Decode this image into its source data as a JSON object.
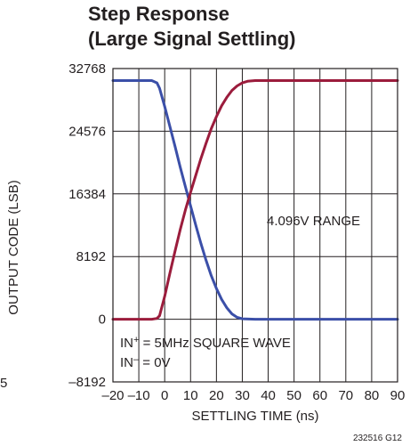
{
  "chart_data": {
    "type": "line",
    "title_line1": "Step Response",
    "title_line2": "(Large Signal Settling)",
    "xlabel": "SETTLING TIME (ns)",
    "ylabel": "OUTPUT CODE (LSB)",
    "xlim": [
      -20,
      90
    ],
    "ylim": [
      -8192,
      32768
    ],
    "x_ticks": [
      "–20",
      "–10",
      "0",
      "10",
      "20",
      "30",
      "40",
      "50",
      "60",
      "70",
      "80",
      "90"
    ],
    "y_ticks": [
      "32768",
      "24576",
      "16384",
      "8192",
      "0",
      "–8192"
    ],
    "grid": true,
    "annotations": {
      "range": "4.096V RANGE",
      "in_plus_prefix": "IN",
      "in_plus_sup": "+",
      "in_plus_rest": " = 5MHz SQUARE WAVE",
      "in_minus_prefix": "IN",
      "in_minus_sup": "–",
      "in_minus_rest": " = 0V"
    },
    "figure_id": "232516 G12",
    "edge_fragment": "5",
    "colors": {
      "falling": "#3b4fa8",
      "rising": "#9b1c3c",
      "grid": "#231f20"
    },
    "series": [
      {
        "x": [
          -20,
          -10,
          -5,
          -3,
          -2,
          0,
          2,
          4,
          6,
          8,
          10,
          12,
          14,
          16,
          18,
          20,
          22,
          24,
          26,
          28,
          30,
          35,
          40,
          50,
          60,
          70,
          80,
          90
        ],
        "values": [
          31200,
          31200,
          31200,
          30900,
          30200,
          27800,
          25200,
          22600,
          19900,
          17300,
          14800,
          12300,
          9900,
          7700,
          5700,
          4000,
          2600,
          1500,
          700,
          250,
          60,
          0,
          0,
          0,
          0,
          0,
          0,
          0
        ]
      },
      {
        "x": [
          -20,
          -10,
          -5,
          -3,
          -2,
          0,
          2,
          4,
          6,
          8,
          10,
          12,
          14,
          16,
          18,
          20,
          22,
          24,
          26,
          28,
          30,
          32,
          35,
          40,
          50,
          60,
          70,
          80,
          90
        ],
        "values": [
          0,
          0,
          0,
          100,
          450,
          3000,
          6000,
          8900,
          11700,
          14300,
          16600,
          18800,
          21000,
          23000,
          24900,
          26500,
          27900,
          29000,
          29900,
          30500,
          30900,
          31100,
          31200,
          31200,
          31200,
          31200,
          31200,
          31200,
          31200
        ]
      }
    ]
  }
}
